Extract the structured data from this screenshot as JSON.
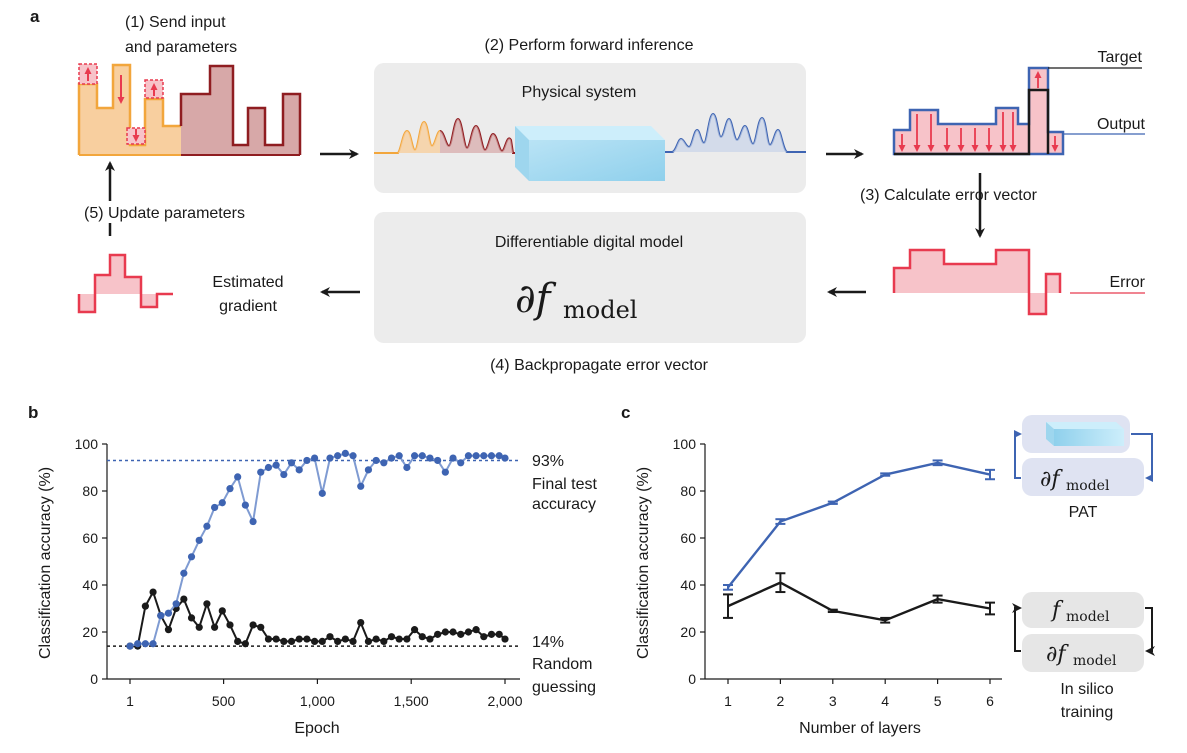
{
  "panel_a": {
    "label": "a",
    "step1": [
      "(1) Send input",
      "and parameters"
    ],
    "step2": "(2) Perform forward inference",
    "physical_system": "Physical system",
    "target_label": "Target",
    "output_label": "Output",
    "step3": "(3) Calculate error vector",
    "error_label": "Error",
    "step5": "(5) Update parameters",
    "digital_model": "Differentiable digital model",
    "estimated_gradient": [
      "Estimated",
      "gradient"
    ],
    "step4": "(4) Backpropagate error vector",
    "colors": {
      "input": "#f2a63c",
      "param": "#8f1d21",
      "output": "#3e64b2",
      "error": "#e83a4f",
      "box": "#ececec"
    }
  },
  "panel_b": {
    "label": "b",
    "ylabel": "Classification accuracy (%)",
    "xlabel": "Epoch",
    "final_value": "93%",
    "final_label": [
      "Final test",
      "accuracy"
    ],
    "random_value": "14%",
    "random_label": [
      "Random",
      "guessing"
    ]
  },
  "panel_c": {
    "label": "c",
    "ylabel": "Classification accuracy (%)",
    "xlabel": "Number of layers",
    "pat_label": "PAT",
    "insilico_label": [
      "In silico",
      "training"
    ]
  },
  "chart_data": [
    {
      "type": "line",
      "title": "",
      "xlabel": "Epoch",
      "ylabel": "Classification accuracy (%)",
      "xlim": [
        1,
        2000
      ],
      "ylim": [
        0,
        100
      ],
      "xticks": [
        1,
        500,
        1000,
        1500,
        2000
      ],
      "xtick_labels": [
        "1",
        "500",
        "1,000",
        "1,500",
        "2,000"
      ],
      "yticks": [
        0,
        20,
        40,
        60,
        80,
        100
      ],
      "reference_lines": [
        {
          "value": 93,
          "label": "93%",
          "color": "#3e64b2"
        },
        {
          "value": 14,
          "label": "14%",
          "color": "#1a1a1a"
        }
      ],
      "x": [
        1,
        42,
        83,
        124,
        165,
        206,
        247,
        288,
        329,
        370,
        411,
        452,
        493,
        534,
        575,
        616,
        657,
        698,
        739,
        780,
        821,
        862,
        903,
        944,
        985,
        1026,
        1067,
        1108,
        1149,
        1190,
        1231,
        1272,
        1313,
        1354,
        1395,
        1436,
        1477,
        1518,
        1559,
        1600,
        1641,
        1682,
        1723,
        1764,
        1805,
        1846,
        1887,
        1928,
        1969,
        2000
      ],
      "series": [
        {
          "color": "#3e64b2",
          "values": [
            14,
            15,
            15,
            15,
            27,
            28,
            32,
            45,
            52,
            59,
            65,
            73,
            75,
            81,
            86,
            74,
            67,
            88,
            90,
            91,
            87,
            92,
            89,
            93,
            94,
            79,
            94,
            95,
            96,
            95,
            82,
            89,
            93,
            92,
            94,
            95,
            90,
            95,
            95,
            94,
            93,
            88,
            94,
            92,
            95,
            95,
            95,
            95,
            95,
            94
          ]
        },
        {
          "color": "#1a1a1a",
          "values": [
            14,
            14,
            31,
            37,
            27,
            21,
            30,
            34,
            26,
            22,
            32,
            22,
            29,
            23,
            16,
            15,
            23,
            22,
            17,
            17,
            16,
            16,
            17,
            17,
            16,
            16,
            18,
            16,
            17,
            16,
            24,
            16,
            17,
            16,
            18,
            17,
            17,
            21,
            18,
            17,
            19,
            20,
            20,
            19,
            20,
            21,
            18,
            19,
            19,
            17
          ]
        }
      ]
    },
    {
      "type": "line",
      "title": "",
      "xlabel": "Number of layers",
      "ylabel": "Classification accuracy (%)",
      "categories": [
        1,
        2,
        3,
        4,
        5,
        6
      ],
      "ylim": [
        0,
        100
      ],
      "yticks": [
        0,
        20,
        40,
        60,
        80,
        100
      ],
      "series": [
        {
          "color": "#3e64b2",
          "values": [
            39,
            67,
            75,
            87,
            92,
            87
          ],
          "errors": [
            1,
            1,
            0.5,
            0.5,
            1,
            2
          ]
        },
        {
          "color": "#1a1a1a",
          "values": [
            31,
            41,
            29,
            25,
            34,
            30
          ],
          "errors": [
            5,
            4,
            0.5,
            1,
            1.5,
            2.5
          ]
        }
      ]
    }
  ]
}
